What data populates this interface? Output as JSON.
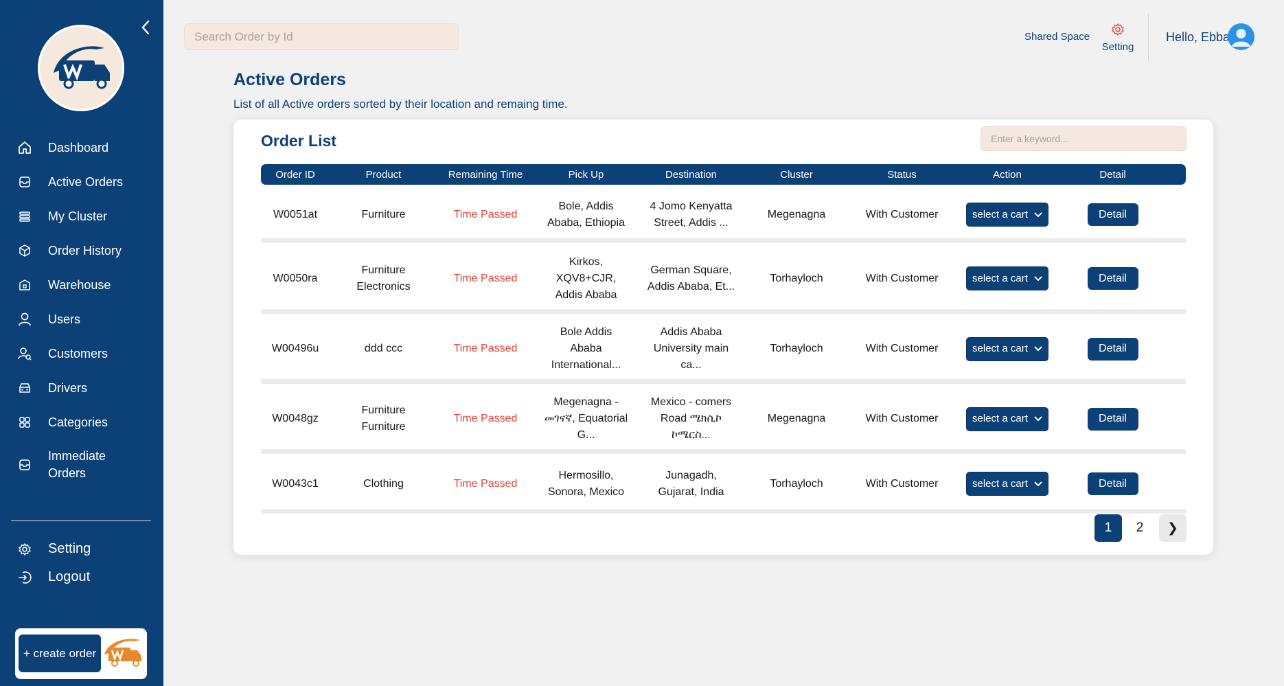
{
  "search": {
    "placeholder": "Search Order by Id"
  },
  "header": {
    "shared_space": "Shared Space",
    "setting": "Setting",
    "greeting": "Hello, Ebba"
  },
  "sidebar": {
    "items": [
      {
        "label": "Dashboard",
        "icon": "home-icon"
      },
      {
        "label": "Active Orders",
        "icon": "box-icon"
      },
      {
        "label": "My Cluster",
        "icon": "list-icon"
      },
      {
        "label": "Order History",
        "icon": "package-icon"
      },
      {
        "label": "Warehouse",
        "icon": "warehouse-icon"
      },
      {
        "label": "Users",
        "icon": "user-icon"
      },
      {
        "label": "Customers",
        "icon": "customers-icon"
      },
      {
        "label": "Drivers",
        "icon": "car-icon"
      },
      {
        "label": "Categories",
        "icon": "grid-icon"
      },
      {
        "label": "Immediate Orders",
        "icon": "box-icon"
      }
    ],
    "bottom": [
      {
        "label": "Setting",
        "icon": "gear-icon"
      },
      {
        "label": "Logout",
        "icon": "logout-icon"
      }
    ],
    "create_order": "+ create order"
  },
  "page": {
    "title": "Active Orders",
    "subtitle": "List of all Active orders sorted by their location and remaing time."
  },
  "order_list": {
    "title": "Order List",
    "keyword_placeholder": "Enter a keyword...",
    "columns": [
      "Order ID",
      "Product",
      "Remaining Time",
      "Pick Up",
      "Destination",
      "Cluster",
      "Status",
      "Action",
      "Detail"
    ],
    "rows": [
      {
        "id": "W0051at",
        "product": "Furniture",
        "time": "Time Passed",
        "pickup": "Bole, Addis Ababa, Ethiopia",
        "destination": "4 Jomo Kenyatta Street, Addis ...",
        "cluster": "Megenagna",
        "status": "With Customer",
        "action": "select a cart",
        "detail": "Detail"
      },
      {
        "id": "W0050ra",
        "product": "Furniture Electronics",
        "time": "Time Passed",
        "pickup": "Kirkos, XQV8+CJR, Addis Ababa",
        "destination": "German Square, Addis Ababa, Et...",
        "cluster": "Torhayloch",
        "status": "With Customer",
        "action": "select a cart",
        "detail": "Detail"
      },
      {
        "id": "W00496u",
        "product": "ddd ccc",
        "time": "Time Passed",
        "pickup": "Bole Addis Ababa International...",
        "destination": "Addis Ababa University main ca...",
        "cluster": "Torhayloch",
        "status": "With Customer",
        "action": "select a cart",
        "detail": "Detail"
      },
      {
        "id": "W0048gz",
        "product": "Furniture Furniture",
        "time": "Time Passed",
        "pickup": "Megenagna - መገናኛ, Equatorial G...",
        "destination": "Mexico - comers Road ሜክሲኮ ኮሜርስ...",
        "cluster": "Megenagna",
        "status": "With Customer",
        "action": "select a cart",
        "detail": "Detail"
      },
      {
        "id": "W0043c1",
        "product": "Clothing",
        "time": "Time Passed",
        "pickup": "Hermosillo, Sonora, Mexico",
        "destination": "Junagadh, Gujarat, India",
        "cluster": "Torhayloch",
        "status": "With Customer",
        "action": "select a cart",
        "detail": "Detail"
      }
    ]
  },
  "pagination": {
    "pages": [
      "1",
      "2"
    ],
    "current": "1",
    "next": "❯"
  },
  "colors": {
    "primary": "#0c4178",
    "accent": "#e78a2e",
    "danger": "#e2483c",
    "input_bg": "#f5e8df"
  }
}
